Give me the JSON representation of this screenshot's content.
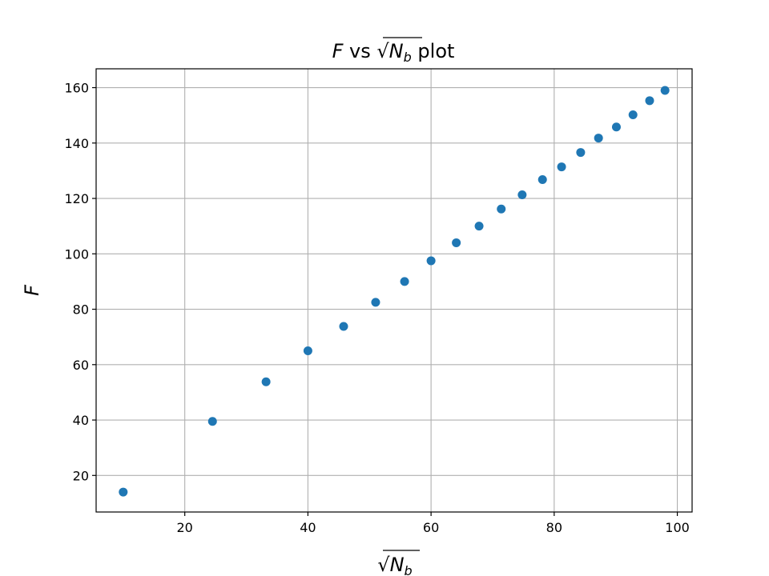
{
  "chart_data": {
    "type": "scatter",
    "title": "F vs √N_b plot",
    "title_parts": {
      "var_f": "F",
      "vs": " vs ",
      "var_n": "N",
      "sub_b": "b",
      "plot": " plot"
    },
    "xlabel_parts": {
      "var_n": "N",
      "sub_b": "b"
    },
    "ylabel": "F",
    "xlim": [
      5.6,
      102.4
    ],
    "ylim": [
      6.8,
      166.8
    ],
    "xticks": [
      20,
      40,
      60,
      80,
      100
    ],
    "yticks": [
      20,
      40,
      60,
      80,
      100,
      120,
      140,
      160
    ],
    "grid": true,
    "marker_color": "#1f77b4",
    "series": [
      {
        "x": [
          10,
          24.5,
          33.2,
          40,
          45.8,
          51,
          55.7,
          60,
          64.1,
          67.8,
          71.4,
          74.8,
          78.1,
          81.2,
          84.3,
          87.2,
          90.1,
          92.8,
          95.5,
          98
        ],
        "y": [
          14,
          39.5,
          53.8,
          65,
          73.8,
          82.5,
          90,
          97.5,
          104,
          110,
          116.2,
          121.3,
          126.8,
          131.4,
          136.6,
          141.8,
          145.8,
          150.2,
          155.3,
          159
        ]
      }
    ]
  }
}
